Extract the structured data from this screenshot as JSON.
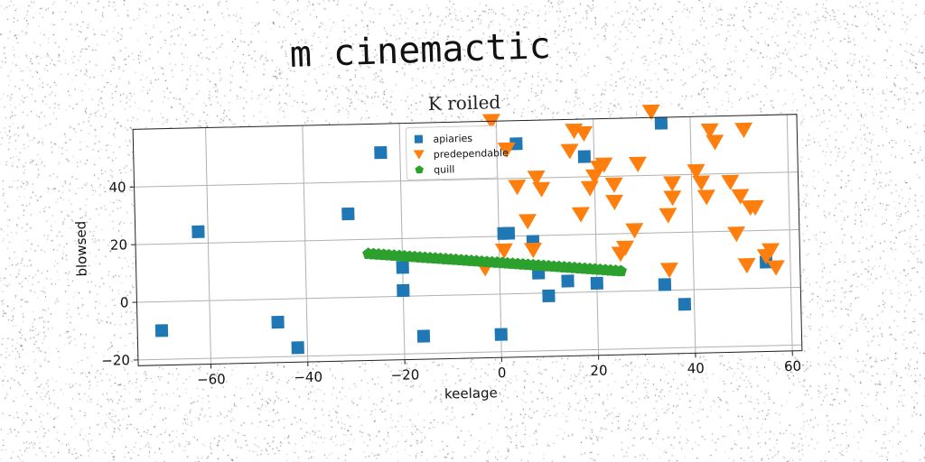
{
  "suptitle": "m cinemactic",
  "chart_data": {
    "type": "scatter",
    "title": "K roiled",
    "xlabel": "keelage",
    "ylabel": "blowsed",
    "xlim": [
      -75,
      62
    ],
    "ylim": [
      -22,
      60
    ],
    "xticks": [
      -60,
      -40,
      -20,
      0,
      20,
      40,
      60
    ],
    "yticks": [
      -20,
      0,
      20,
      40
    ],
    "xtick_labels": [
      "−60",
      "−40",
      "−20",
      "0",
      "20",
      "40",
      "60"
    ],
    "ytick_labels": [
      "−20",
      "0",
      "20",
      "40"
    ],
    "grid": true,
    "legend_position": "top-center",
    "series": [
      {
        "name": "apiaries",
        "marker": "square",
        "color": "#1f77b4",
        "points": [
          [
            -70,
            -10
          ],
          [
            -62,
            24
          ],
          [
            -46,
            -8
          ],
          [
            -42,
            -17
          ],
          [
            -31,
            29
          ],
          [
            -24,
            50
          ],
          [
            -20,
            2
          ],
          [
            -20,
            10
          ],
          [
            -16,
            -14
          ],
          [
            0,
            -14
          ],
          [
            1,
            21
          ],
          [
            2,
            21
          ],
          [
            4,
            52
          ],
          [
            7,
            18
          ],
          [
            8,
            7
          ],
          [
            10,
            -1
          ],
          [
            14,
            4
          ],
          [
            18,
            47
          ],
          [
            20,
            3
          ],
          [
            34,
            58
          ],
          [
            34,
            2
          ],
          [
            38,
            -5
          ],
          [
            55,
            9
          ]
        ]
      },
      {
        "name": "predependable",
        "marker": "triangle_down",
        "color": "#ff7f0e",
        "points": [
          [
            -1,
            60
          ],
          [
            2,
            50
          ],
          [
            -3,
            9
          ],
          [
            1,
            15
          ],
          [
            4,
            37
          ],
          [
            6,
            25
          ],
          [
            7,
            15
          ],
          [
            8,
            40
          ],
          [
            9,
            36
          ],
          [
            15,
            49
          ],
          [
            16,
            56
          ],
          [
            17,
            27
          ],
          [
            18,
            55
          ],
          [
            19,
            36
          ],
          [
            20,
            40
          ],
          [
            21,
            43
          ],
          [
            22,
            44
          ],
          [
            24,
            37
          ],
          [
            24,
            31
          ],
          [
            25,
            13
          ],
          [
            26,
            15
          ],
          [
            28,
            21
          ],
          [
            29,
            44
          ],
          [
            32,
            62
          ],
          [
            35,
            26
          ],
          [
            35,
            7
          ],
          [
            36,
            37
          ],
          [
            36,
            32
          ],
          [
            41,
            41
          ],
          [
            42,
            37
          ],
          [
            43,
            32
          ],
          [
            44,
            55
          ],
          [
            45,
            51
          ],
          [
            48,
            37
          ],
          [
            49,
            19
          ],
          [
            50,
            32
          ],
          [
            51,
            55
          ],
          [
            51,
            8
          ],
          [
            52,
            28
          ],
          [
            53,
            28
          ],
          [
            55,
            11
          ],
          [
            56,
            13
          ],
          [
            57,
            7
          ]
        ]
      },
      {
        "name": "quill",
        "marker": "pentagon",
        "color": "#2ca02c",
        "line_from": [
          -27,
          15
        ],
        "line_to": [
          25,
          7
        ],
        "n_points": 50
      }
    ]
  }
}
